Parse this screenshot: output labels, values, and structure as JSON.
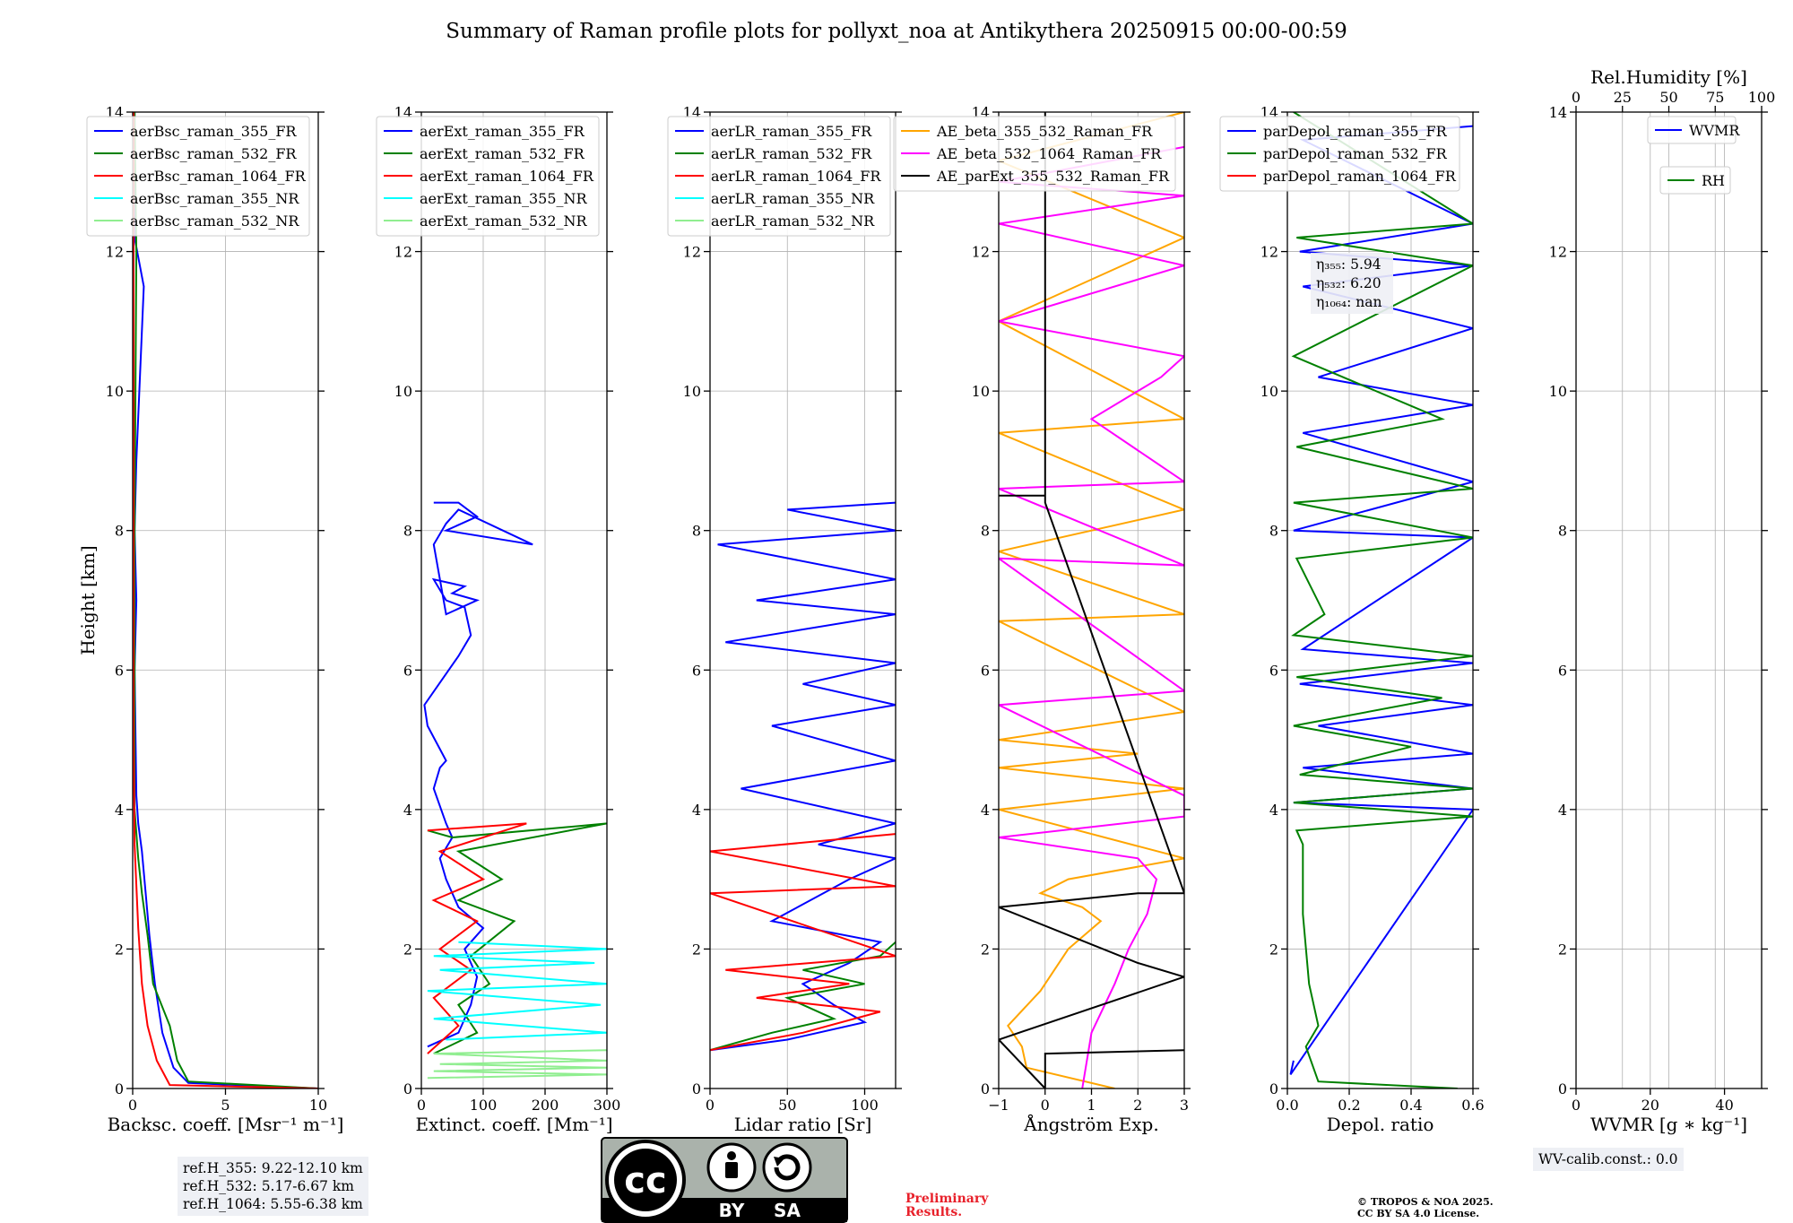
{
  "title": "Summary of Raman profile plots for pollyxt_noa at Antikythera 20250915 00:00-00:59",
  "chart_data": [
    {
      "type": "line",
      "id": "bsc",
      "xlabel": "Backsc. coeff. [Msr⁻¹ m⁻¹]",
      "ylabel": "Height [km]",
      "xlim": [
        0,
        10
      ],
      "ylim": [
        0,
        14
      ],
      "xticks": [
        0,
        5,
        10
      ],
      "xtick_labels": [
        "0",
        "5",
        "10"
      ],
      "series": [
        {
          "name": "aerBsc_raman_355_FR",
          "color": "#0000ff",
          "x": [
            10,
            3,
            2.2,
            1.6,
            1.2,
            0.9,
            0.7,
            0.5,
            0.3,
            0.2,
            0.1,
            0.2,
            0.1,
            0.2,
            0.6,
            0.1,
            0.1
          ],
          "y": [
            0,
            0.08,
            0.3,
            0.8,
            1.5,
            2.2,
            2.8,
            3.4,
            3.8,
            4.2,
            6,
            7,
            8,
            9,
            11.5,
            12.2,
            14
          ]
        },
        {
          "name": "aerBsc_raman_532_FR",
          "color": "#008000",
          "x": [
            10,
            3,
            2.4,
            2.0,
            1.1,
            0.8,
            0.5,
            0.3,
            0.1,
            0.1,
            0.2,
            0.1
          ],
          "y": [
            0,
            0.1,
            0.4,
            0.9,
            1.5,
            2.2,
            2.8,
            3.3,
            4,
            8,
            12,
            14
          ]
        },
        {
          "name": "aerBsc_raman_1064_FR",
          "color": "#ff0000",
          "x": [
            10,
            2.0,
            1.3,
            0.8,
            0.5,
            0.3,
            0.1,
            0.05,
            0.05
          ],
          "y": [
            0,
            0.05,
            0.4,
            0.9,
            1.5,
            2.3,
            3.5,
            5,
            14
          ]
        },
        {
          "name": "aerBsc_raman_355_NR",
          "color": "#00ffff",
          "x": [],
          "y": []
        },
        {
          "name": "aerBsc_raman_532_NR",
          "color": "#90ee90",
          "x": [],
          "y": []
        }
      ]
    },
    {
      "type": "line",
      "id": "ext",
      "xlabel": "Extinct. coeff. [Mm⁻¹]",
      "ylabel": "",
      "xlim": [
        0,
        300
      ],
      "ylim": [
        0,
        14
      ],
      "xticks": [
        0,
        100,
        200,
        300
      ],
      "xtick_labels": [
        "0",
        "100",
        "200",
        "300"
      ],
      "series": [
        {
          "name": "aerExt_raman_355_FR",
          "color": "#0000ff",
          "x": [
            10,
            60,
            80,
            90,
            70,
            100,
            60,
            40,
            30,
            50,
            40,
            20,
            30,
            40,
            10,
            5,
            60,
            80,
            70,
            40,
            20,
            70,
            50,
            90,
            40,
            20,
            40,
            60,
            180,
            40,
            90,
            60,
            20
          ],
          "y": [
            0.6,
            0.8,
            1.2,
            1.6,
            2.0,
            2.3,
            2.6,
            3.0,
            3.3,
            3.6,
            3.8,
            4.3,
            4.6,
            4.7,
            5.2,
            5.5,
            6.2,
            6.5,
            6.9,
            7.0,
            7.3,
            7.2,
            7.1,
            7.0,
            6.8,
            7.8,
            8.1,
            8.3,
            7.8,
            8.0,
            8.2,
            8.4,
            8.4
          ]
        },
        {
          "name": "aerExt_raman_532_FR",
          "color": "#008000",
          "x": [
            20,
            90,
            60,
            110,
            80,
            150,
            60,
            130,
            60,
            300,
            50,
            10
          ],
          "y": [
            0.5,
            0.8,
            1.2,
            1.5,
            1.9,
            2.4,
            2.7,
            3.0,
            3.4,
            3.8,
            3.6,
            3.7
          ]
        },
        {
          "name": "aerExt_raman_1064_FR",
          "color": "#ff0000",
          "x": [
            10,
            60,
            20,
            80,
            30,
            90,
            20,
            100,
            30,
            170,
            10
          ],
          "y": [
            0.5,
            0.9,
            1.3,
            1.7,
            2.0,
            2.4,
            2.7,
            3.0,
            3.4,
            3.8,
            3.7
          ]
        },
        {
          "name": "aerExt_raman_355_NR",
          "color": "#00ffff",
          "x": [
            40,
            300,
            20,
            290,
            10,
            300,
            30,
            280,
            20,
            300,
            60
          ],
          "y": [
            0.7,
            0.8,
            1.0,
            1.2,
            1.4,
            1.5,
            1.7,
            1.8,
            1.9,
            2.0,
            2.1
          ]
        },
        {
          "name": "aerExt_raman_532_NR",
          "color": "#90ee90",
          "x": [
            10,
            300,
            20,
            300,
            30,
            300,
            20,
            300
          ],
          "y": [
            0.15,
            0.2,
            0.25,
            0.3,
            0.35,
            0.4,
            0.5,
            0.55
          ]
        }
      ]
    },
    {
      "type": "line",
      "id": "lr",
      "xlabel": "Lidar ratio [Sr]",
      "ylabel": "",
      "xlim": [
        0,
        120
      ],
      "ylim": [
        0,
        14
      ],
      "xticks": [
        0,
        50,
        100
      ],
      "xtick_labels": [
        "0",
        "50",
        "100"
      ],
      "series": [
        {
          "name": "aerLR_raman_355_FR",
          "color": "#0000ff",
          "x": [
            0,
            50,
            100,
            80,
            60,
            90,
            110,
            40,
            90,
            120,
            70,
            120,
            20,
            120,
            40,
            120,
            60,
            120,
            10,
            120,
            30,
            120,
            5,
            120,
            50,
            120
          ],
          "y": [
            0.55,
            0.7,
            0.95,
            1.2,
            1.5,
            1.8,
            2.1,
            2.4,
            3.0,
            3.3,
            3.5,
            3.8,
            4.3,
            4.7,
            5.2,
            5.5,
            5.8,
            6.1,
            6.4,
            6.8,
            7.0,
            7.3,
            7.8,
            8.0,
            8.3,
            8.4
          ]
        },
        {
          "name": "aerLR_raman_532_FR",
          "color": "#008000",
          "x": [
            0,
            40,
            80,
            50,
            100,
            60,
            110,
            120
          ],
          "y": [
            0.55,
            0.8,
            1.0,
            1.3,
            1.5,
            1.7,
            1.9,
            2.1
          ]
        },
        {
          "name": "aerLR_raman_1064_FR",
          "color": "#ff0000",
          "x": [
            0,
            60,
            110,
            30,
            90,
            10,
            120,
            0,
            120,
            0,
            120
          ],
          "y": [
            0.55,
            0.8,
            1.1,
            1.3,
            1.5,
            1.7,
            1.9,
            2.8,
            2.9,
            3.4,
            3.65
          ]
        },
        {
          "name": "aerLR_raman_355_NR",
          "color": "#00ffff",
          "x": [],
          "y": []
        },
        {
          "name": "aerLR_raman_532_NR",
          "color": "#90ee90",
          "x": [],
          "y": []
        }
      ]
    },
    {
      "type": "line",
      "id": "ae",
      "xlabel": "Ångström Exp.",
      "ylabel": "",
      "xlim": [
        -1,
        3
      ],
      "ylim": [
        0,
        14
      ],
      "xticks": [
        -1,
        0,
        1,
        2,
        3
      ],
      "xtick_labels": [
        "−1",
        "0",
        "1",
        "2",
        "3"
      ],
      "series": [
        {
          "name": "AE_beta_355_532_Raman_FR",
          "color": "#ffa500",
          "x": [
            1.5,
            -0.4,
            -0.5,
            -0.8,
            -0.1,
            0.5,
            1.2,
            0.8,
            -0.1,
            0.5,
            3.0,
            -1,
            3.0,
            -1,
            2.0,
            -1,
            3.0,
            -1,
            3.0,
            -1,
            3.0,
            -1,
            3.0,
            -1,
            3.0,
            -1,
            3.0
          ],
          "y": [
            0,
            0.3,
            0.6,
            0.9,
            1.4,
            2.0,
            2.4,
            2.6,
            2.8,
            3.0,
            3.3,
            4.0,
            4.3,
            4.6,
            4.8,
            5.0,
            5.4,
            6.7,
            6.8,
            7.7,
            8.3,
            9.4,
            9.6,
            11.0,
            12.2,
            13.3,
            14
          ]
        },
        {
          "name": "AE_beta_532_1064_Raman_FR",
          "color": "#ff00ff",
          "x": [
            0.8,
            1.0,
            1.5,
            1.8,
            2.2,
            2.4,
            2.0,
            -1,
            3.0,
            3.0,
            -1,
            3.0,
            -1,
            3.0,
            -1,
            3.0,
            1.0,
            2.5,
            3.0,
            -1,
            3.0,
            -1,
            3.0,
            -1,
            3.0
          ],
          "y": [
            0,
            0.8,
            1.5,
            2.0,
            2.5,
            3.0,
            3.3,
            3.6,
            3.9,
            4.2,
            5.5,
            5.7,
            7.6,
            7.5,
            8.6,
            8.7,
            9.6,
            10.2,
            10.5,
            11.0,
            11.8,
            12.4,
            12.8,
            13.0,
            13.5
          ]
        },
        {
          "name": "AE_parExt_355_532_Raman_FR",
          "color": "#000000",
          "x": [
            3,
            0,
            0,
            -1,
            3,
            2.0,
            -1,
            2.0,
            3,
            0,
            0,
            -1,
            0,
            0
          ],
          "y": [
            0.55,
            0.5,
            0,
            0.7,
            1.6,
            1.8,
            2.6,
            2.8,
            2.8,
            8.4,
            8.5,
            8.5,
            8.5,
            14
          ]
        }
      ]
    },
    {
      "type": "line",
      "id": "depol",
      "xlabel": "Depol. ratio",
      "ylabel": "",
      "xlim": [
        0,
        0.6
      ],
      "ylim": [
        0,
        14
      ],
      "xticks": [
        0,
        0.2,
        0.4,
        0.6
      ],
      "xtick_labels": [
        "0.0",
        "0.2",
        "0.4",
        "0.6"
      ],
      "series": [
        {
          "name": "parDepol_raman_355_FR",
          "color": "#0000ff",
          "x": [
            0.02,
            0.01,
            0.6,
            0.02,
            0.6,
            0.05,
            0.6,
            0.1,
            0.6,
            0.04,
            0.6,
            0.05,
            0.6,
            0.02,
            0.6,
            0.05,
            0.6,
            0.1,
            0.6,
            0.05,
            0.6,
            0.04,
            0.6,
            0.05,
            0.6
          ],
          "y": [
            0.4,
            0.2,
            4.0,
            4.1,
            4.3,
            4.6,
            4.8,
            5.2,
            5.5,
            5.8,
            6.1,
            6.3,
            7.9,
            8.0,
            8.7,
            9.4,
            9.8,
            10.2,
            10.9,
            11.5,
            11.8,
            12.0,
            12.4,
            13.6,
            13.8
          ]
        },
        {
          "name": "parDepol_raman_532_FR",
          "color": "#008000",
          "x": [
            0.55,
            0.1,
            0.06,
            0.1,
            0.07,
            0.05,
            0.05,
            0.03,
            0.6,
            0.02,
            0.6,
            0.04,
            0.4,
            0.02,
            0.5,
            0.03,
            0.6,
            0.02,
            0.12,
            0.03,
            0.6,
            0.02,
            0.6,
            0.03,
            0.5,
            0.02,
            0.6,
            0.03,
            0.6,
            0.02
          ],
          "y": [
            0,
            0.1,
            0.6,
            0.9,
            1.5,
            2.5,
            3.5,
            3.7,
            3.9,
            4.1,
            4.3,
            4.5,
            4.9,
            5.2,
            5.6,
            5.9,
            6.2,
            6.5,
            6.8,
            7.6,
            7.9,
            8.4,
            8.6,
            9.2,
            9.6,
            10.5,
            11.8,
            12.2,
            12.4,
            14
          ]
        },
        {
          "name": "parDepol_raman_1064_FR",
          "color": "#ff0000",
          "x": [],
          "y": []
        }
      ]
    },
    {
      "type": "line",
      "id": "wv",
      "xlabel": "WVMR [g ∗ kg⁻¹]",
      "ylabel": "",
      "xlim": [
        0,
        50
      ],
      "ylim": [
        0,
        14
      ],
      "xticks": [
        0,
        20,
        40
      ],
      "xtick_labels": [
        "0",
        "20",
        "40"
      ],
      "top_axis_label": "Rel.Humidity [%]",
      "top_xticks": [
        0,
        25,
        50,
        75,
        100
      ],
      "top_xtick_labels": [
        "0",
        "25",
        "50",
        "75",
        "100"
      ],
      "series": [
        {
          "name": "WVMR",
          "color": "#0000ff",
          "x": [],
          "y": []
        },
        {
          "name": "RH",
          "color": "#008000",
          "x": [],
          "y": []
        }
      ]
    }
  ],
  "yticks": [
    0,
    2,
    4,
    6,
    8,
    10,
    12,
    14
  ],
  "ytick_labels": [
    "0",
    "2",
    "4",
    "6",
    "8",
    "10",
    "12",
    "14"
  ],
  "eta_lines": [
    "η₃₅₅: 5.94",
    "η₅₃₂: 6.20",
    "η₁₀₆₄: nan"
  ],
  "ref_box": [
    "ref.H_355: 9.22-12.10 km",
    "ref.H_532: 5.17-6.67 km",
    "ref.H_1064: 5.55-6.38 km"
  ],
  "wv_calib": "WV-calib.const.: 0.0",
  "preliminary": [
    "Preliminary",
    "Results."
  ],
  "copyright": [
    "© TROPOS & NOA 2025.",
    "CC BY SA 4.0 License."
  ],
  "cc_badge": {
    "by": "BY",
    "sa": "SA",
    "cc": "cc"
  }
}
